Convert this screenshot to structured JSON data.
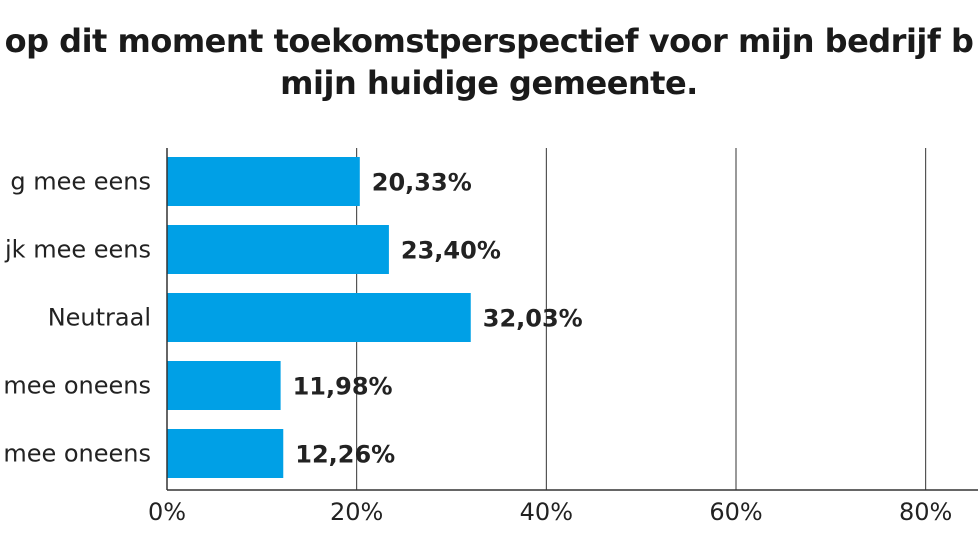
{
  "chart_data": {
    "type": "bar",
    "orientation": "horizontal",
    "title_lines": [
      "op dit moment toekomstperspectief voor mijn bedrijf b",
      "mijn huidige gemeente."
    ],
    "categories": [
      "g mee eens",
      "jk mee eens",
      "Neutraal",
      "mee oneens",
      "mee oneens"
    ],
    "values": [
      20.33,
      23.4,
      32.03,
      11.98,
      12.26
    ],
    "value_labels": [
      "20,33%",
      "23,40%",
      "32,03%",
      "11,98%",
      "12,26%"
    ],
    "xticks": [
      {
        "value": 0,
        "label": "0%"
      },
      {
        "value": 20,
        "label": "20%"
      },
      {
        "value": 40,
        "label": "40%"
      },
      {
        "value": 60,
        "label": "60%"
      },
      {
        "value": 80,
        "label": "80%"
      }
    ],
    "xlim": [
      0,
      85
    ],
    "grid": "vertical",
    "legend": "none",
    "bar_color": "#00A0E6"
  }
}
